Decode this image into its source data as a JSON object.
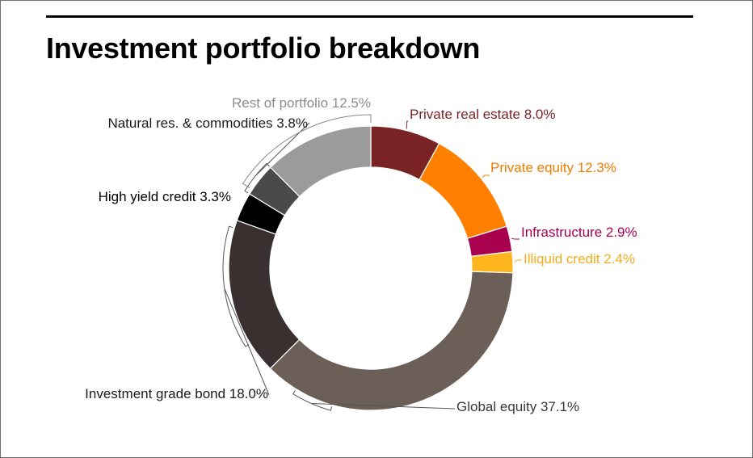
{
  "title": "Investment portfolio breakdown",
  "chart_data": {
    "type": "pie",
    "subtype": "donut",
    "title": "Investment portfolio breakdown",
    "slices": [
      {
        "label": "Private real estate",
        "value": 8.0,
        "text": "Private real estate 8.0%",
        "color": "#7a2325",
        "label_color": "#7a2325"
      },
      {
        "label": "Private equity",
        "value": 12.3,
        "text": "Private equity 12.3%",
        "color": "#ff8000",
        "label_color": "#f07c00"
      },
      {
        "label": "Infrastructure",
        "value": 2.9,
        "text": "Infrastructure 2.9%",
        "color": "#a8004f",
        "label_color": "#a8004f"
      },
      {
        "label": "Illiquid credit",
        "value": 2.4,
        "text": "Illiquid credit 2.4%",
        "color": "#ffb61e",
        "label_color": "#f5ac1a"
      },
      {
        "label": "Global equity",
        "value": 37.1,
        "text": "Global equity 37.1%",
        "color": "#6b5f57",
        "label_color": "#3a3a3a"
      },
      {
        "label": "Investment grade bond",
        "value": 18.0,
        "text": "Investment grade bond 18.0%",
        "color": "#3a3030",
        "label_color": "#1a1a1a"
      },
      {
        "label": "High yield credit",
        "value": 3.3,
        "text": "High yield credit  3.3%",
        "color": "#000000",
        "label_color": "#000000"
      },
      {
        "label": "Natural res. & commodities",
        "value": 3.8,
        "text": "Natural res. & commodities 3.8%",
        "color": "#4a4a4a",
        "label_color": "#1a1a1a"
      },
      {
        "label": "Rest of portfolio",
        "value": 12.5,
        "text": "Rest of portfolio 12.5%",
        "color": "#9b9b9b",
        "label_color": "#8c8c8c"
      }
    ]
  }
}
